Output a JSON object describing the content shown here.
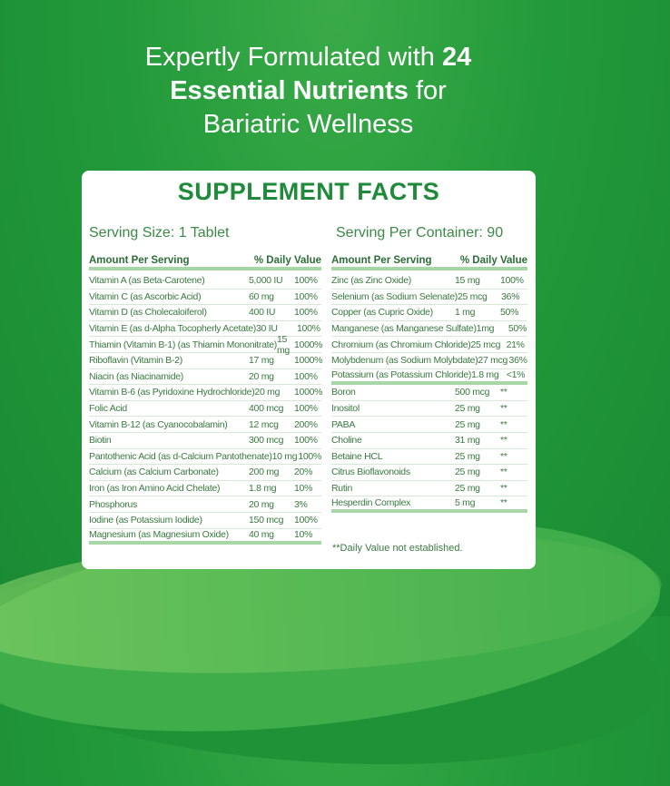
{
  "headline": {
    "line1": "Expertly Formulated with ",
    "line1_bold": "24",
    "line2_bold": "Essential Nutrients",
    "line2": " for",
    "line3": "Bariatric Wellness"
  },
  "panel": {
    "title": "SUPPLEMENT FACTS",
    "serving_size": "Serving Size: 1 Tablet",
    "servings_per_container": "Serving Per Container: 90",
    "col_amount": "Amount Per Serving",
    "col_dv": "% Daily Value",
    "left": [
      [
        "Vitamin A (as  Beta-Carotene)",
        "5,000 IU",
        "100%"
      ],
      [
        "Vitamin C (as Ascorbic Acid)",
        "60 mg",
        "100%"
      ],
      [
        "Vitamin D (as Cholecaloiferol)",
        "400 IU",
        "100%"
      ],
      [
        "Vitamin E (as d-Alpha Tocopherly Acetate)",
        "30 IU",
        "100%"
      ],
      [
        "Thiamin (Vitamin B-1) (as Thiamin Mononitrate)",
        "15 mg",
        "1000%"
      ],
      [
        "Riboflavin (Vitamin B-2)",
        "17 mg",
        "1000%"
      ],
      [
        "Niacin (as Niacinamide)",
        "20 mg",
        "100%"
      ],
      [
        "Vitamin B-6 (as Pyridoxine Hydrochloride)",
        "20 mg",
        "1000%"
      ],
      [
        "Folic Acid",
        "400 mcg",
        "100%"
      ],
      [
        "Vitamin B-12 (as Cyanocobalamin)",
        "12 mcg",
        "200%"
      ],
      [
        "Biotin",
        "300 mcg",
        "100%"
      ],
      [
        "Pantothenic Acid (as d-Calcium Pantothenate)",
        "10 mg",
        "100%"
      ],
      [
        "Calcium (as Calcium Carbonate)",
        "200 mg",
        "20%"
      ],
      [
        "Iron (as Iron Amino Acid Chelate)",
        "1.8 mg",
        "10%"
      ],
      [
        "Phosphorus",
        "20 mg",
        "3%"
      ],
      [
        "Iodine (as Potassium Iodide)",
        "150 mcg",
        "100%"
      ],
      [
        "Magnesium (as Magnesium Oxide)",
        "40 mg",
        "10%"
      ]
    ],
    "right": [
      [
        "Zinc (as Zinc Oxide)",
        "15 mg",
        "100%"
      ],
      [
        "Selenium (as Sodium Selenate)",
        "25 mcg",
        "36%"
      ],
      [
        "Copper (as Cupric Oxide)",
        "1 mg",
        "50%"
      ],
      [
        "Manganese (as Manganese Sulfate)",
        "1mg",
        "50%"
      ],
      [
        "Chromium (as Chromium Chloride)",
        "25 mcg",
        "21%"
      ],
      [
        "Molybdenum (as Sodium Molybdate)",
        "27 mcg",
        "36%"
      ],
      [
        "Potassium (as Potassium Chloride)",
        "1.8 mg",
        "<1%"
      ]
    ],
    "right2": [
      [
        "Boron",
        "500 mcg",
        "**"
      ],
      [
        "Inositol",
        "25 mg",
        "**"
      ],
      [
        "PABA",
        "25 mg",
        "**"
      ],
      [
        "Choline",
        "31 mg",
        "**"
      ],
      [
        "Betaine HCL",
        "25 mg",
        "**"
      ],
      [
        "Citrus Bioflavonoids",
        "25 mg",
        "**"
      ],
      [
        "Rutin",
        "25 mg",
        "**"
      ],
      [
        "Hesperdin Complex",
        "5 mg",
        "**"
      ]
    ],
    "footnote": "**Daily Value not established."
  }
}
